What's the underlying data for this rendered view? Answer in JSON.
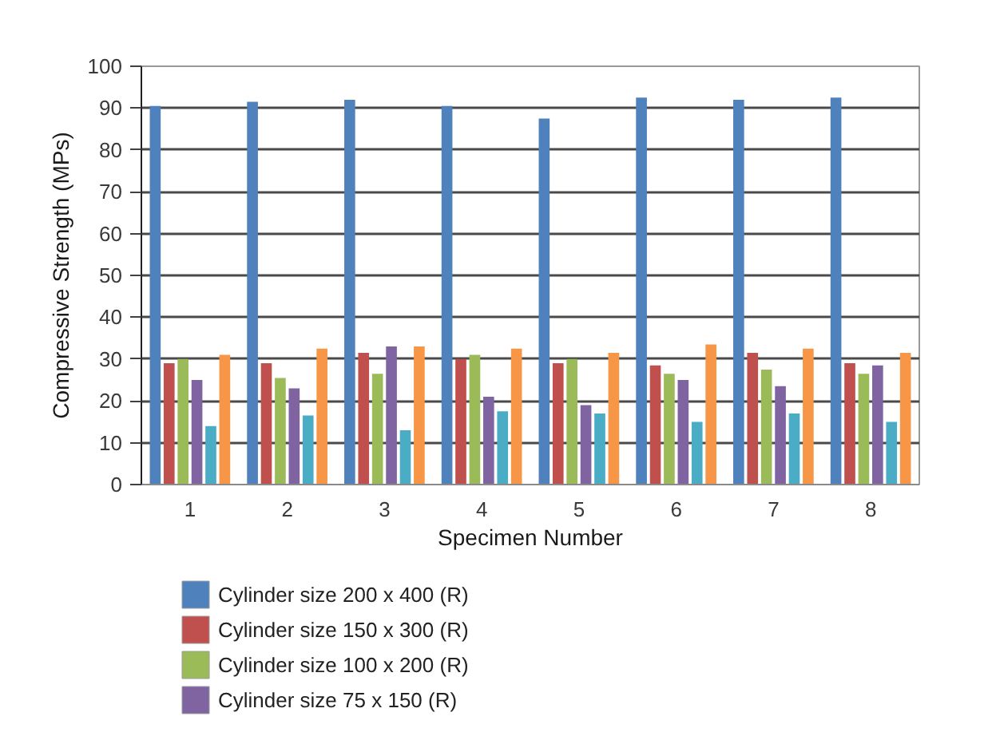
{
  "chart_data": {
    "type": "bar",
    "xlabel": "Specimen Number",
    "ylabel": "Compressive Strength (MPs)",
    "categories": [
      "1",
      "2",
      "3",
      "4",
      "5",
      "6",
      "7",
      "8"
    ],
    "series": [
      {
        "name": "Cylinder size 200 x 400 (R)",
        "color": "#4f81bd",
        "values": [
          90.5,
          91.5,
          92,
          90.5,
          87.5,
          92.5,
          92,
          92.5
        ]
      },
      {
        "name": "Cylinder size 150 x 300  (R)",
        "color": "#c0504d",
        "values": [
          29,
          29,
          31.5,
          30,
          29,
          28.5,
          31.5,
          29
        ]
      },
      {
        "name": "Cylinder size 100 x 200 (R)",
        "color": "#9bbb59",
        "values": [
          30,
          25.5,
          26.5,
          31,
          30,
          26.5,
          27.5,
          26.5
        ]
      },
      {
        "name": "Cylinder size 75 x 150 (R)",
        "color": "#8064a2",
        "values": [
          25,
          23,
          33,
          21,
          19,
          25,
          23.5,
          28.5
        ]
      },
      {
        "color": "#4bacc6",
        "values": [
          14,
          16.5,
          13,
          17.5,
          17,
          15,
          17,
          15
        ]
      },
      {
        "color": "#f79646",
        "values": [
          31,
          32.5,
          33,
          32.5,
          31.5,
          33.5,
          32.5,
          31.5
        ]
      }
    ],
    "ylim": [
      0,
      100
    ],
    "yticks": [
      0,
      10,
      20,
      30,
      40,
      50,
      60,
      70,
      80,
      90,
      100
    ],
    "grid": "y",
    "legend": "bottom"
  }
}
